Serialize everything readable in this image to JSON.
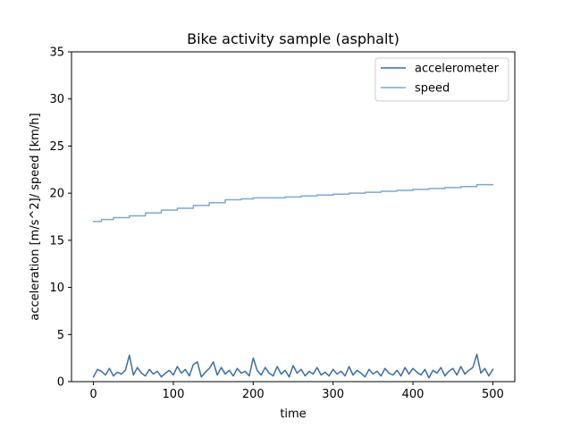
{
  "chart_data": {
    "type": "line",
    "title": "Bike activity sample (asphalt)",
    "xlabel": "time",
    "ylabel": "acceleration [m/s^2]/ speed [km/h]",
    "xlim": [
      -27.5,
      527.5
    ],
    "ylim": [
      0,
      35
    ],
    "x_ticks": [
      0,
      100,
      200,
      300,
      400,
      500
    ],
    "y_ticks": [
      0,
      5,
      10,
      15,
      20,
      25,
      30,
      35
    ],
    "grid": false,
    "legend_position": "upper right",
    "series": [
      {
        "name": "accelerometer",
        "color": "#3a6ea5",
        "x": [
          0,
          5,
          10,
          15,
          20,
          25,
          30,
          35,
          40,
          45,
          50,
          55,
          60,
          65,
          70,
          75,
          80,
          85,
          90,
          95,
          100,
          105,
          110,
          115,
          120,
          125,
          130,
          135,
          140,
          145,
          150,
          155,
          160,
          165,
          170,
          175,
          180,
          185,
          190,
          195,
          200,
          205,
          210,
          215,
          220,
          225,
          230,
          235,
          240,
          245,
          250,
          255,
          260,
          265,
          270,
          275,
          280,
          285,
          290,
          295,
          300,
          305,
          310,
          315,
          320,
          325,
          330,
          335,
          340,
          345,
          350,
          355,
          360,
          365,
          370,
          375,
          380,
          385,
          390,
          395,
          400,
          405,
          410,
          415,
          420,
          425,
          430,
          435,
          440,
          445,
          450,
          455,
          460,
          465,
          470,
          475,
          480,
          485,
          490,
          495,
          500
        ],
        "values": [
          0.5,
          1.3,
          1.1,
          0.7,
          1.4,
          0.6,
          1.0,
          0.8,
          1.2,
          2.8,
          0.7,
          1.5,
          0.9,
          0.6,
          1.3,
          0.8,
          1.1,
          0.5,
          0.9,
          1.2,
          0.7,
          1.6,
          0.9,
          1.3,
          0.6,
          1.8,
          2.1,
          0.5,
          1.0,
          1.4,
          2.1,
          0.7,
          1.5,
          0.8,
          1.2,
          0.6,
          1.4,
          0.9,
          1.1,
          0.6,
          2.5,
          1.2,
          0.7,
          1.5,
          0.9,
          0.6,
          1.6,
          0.8,
          1.2,
          0.5,
          1.7,
          0.9,
          1.3,
          0.6,
          1.1,
          0.8,
          1.5,
          0.7,
          1.0,
          0.6,
          1.3,
          0.8,
          1.1,
          0.6,
          1.6,
          0.7,
          1.2,
          0.9,
          0.5,
          1.3,
          0.8,
          1.1,
          0.6,
          1.4,
          0.9,
          0.7,
          1.2,
          0.6,
          1.5,
          0.8,
          1.4,
          1.0,
          0.7,
          1.3,
          0.4,
          1.2,
          0.9,
          1.5,
          0.6,
          1.1,
          1.4,
          0.7,
          1.6,
          0.8,
          1.2,
          1.5,
          2.9,
          0.9,
          1.4,
          0.6,
          1.3
        ]
      },
      {
        "name": "speed",
        "color": "#7aa9d1",
        "x": [
          0,
          10,
          10,
          25,
          25,
          45,
          45,
          65,
          65,
          85,
          85,
          105,
          105,
          125,
          125,
          145,
          145,
          165,
          165,
          185,
          185,
          200,
          200,
          225,
          225,
          240,
          240,
          260,
          260,
          280,
          280,
          300,
          300,
          320,
          320,
          340,
          340,
          360,
          360,
          380,
          380,
          400,
          400,
          420,
          420,
          440,
          440,
          460,
          460,
          480,
          480,
          500
        ],
        "values": [
          17.0,
          17.0,
          17.2,
          17.2,
          17.4,
          17.4,
          17.6,
          17.6,
          17.9,
          17.9,
          18.2,
          18.2,
          18.4,
          18.4,
          18.7,
          18.7,
          19.0,
          19.0,
          19.3,
          19.3,
          19.4,
          19.4,
          19.5,
          19.5,
          19.5,
          19.5,
          19.6,
          19.6,
          19.7,
          19.7,
          19.8,
          19.8,
          19.9,
          19.9,
          20.0,
          20.0,
          20.1,
          20.1,
          20.2,
          20.2,
          20.3,
          20.3,
          20.4,
          20.4,
          20.5,
          20.5,
          20.6,
          20.6,
          20.7,
          20.7,
          20.9,
          20.9
        ]
      }
    ]
  }
}
